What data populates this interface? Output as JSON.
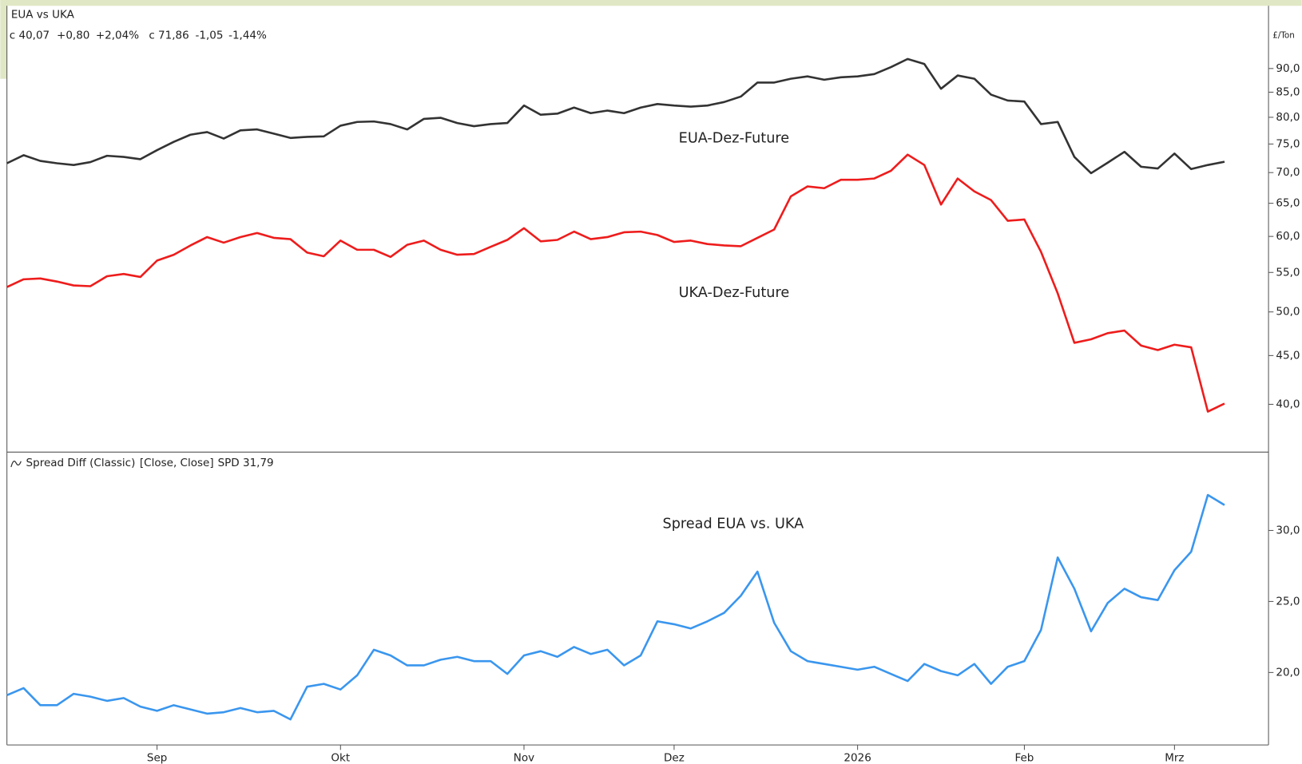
{
  "chart_data": [
    {
      "type": "line",
      "title": "EUA vs UKA",
      "unit": "£/Ton",
      "quotes": [
        {
          "text": "c 40,07",
          "color": "#e8141b"
        },
        {
          "text": "+0,80",
          "color": "#1a9a1a"
        },
        {
          "text": "+2,04%",
          "color": "#1a9a1a"
        },
        {
          "text": "c 71,86",
          "color": "#333333"
        },
        {
          "text": "-1,05",
          "color": "#e8141b"
        },
        {
          "text": "-1,44%",
          "color": "#e8141b"
        }
      ],
      "log": true,
      "ylim": [
        36,
        100
      ],
      "yticks": [
        {
          "value": 40,
          "label": "40,0"
        },
        {
          "value": 45,
          "label": "45,0"
        },
        {
          "value": 50,
          "label": "50,0"
        },
        {
          "value": 55,
          "label": "55,0"
        },
        {
          "value": 60,
          "label": "60,0"
        },
        {
          "value": 65,
          "label": "65,0"
        },
        {
          "value": 70,
          "label": "70,0"
        },
        {
          "value": 75,
          "label": "75,0"
        },
        {
          "value": 80,
          "label": "80,0"
        },
        {
          "value": 85,
          "label": "85,0"
        },
        {
          "value": 90,
          "label": "90,0"
        }
      ],
      "series": [
        {
          "name": "EUA-Dez-Future",
          "color": "#333333",
          "values": [
            71.6,
            73.0,
            72.0,
            71.6,
            71.3,
            71.8,
            72.9,
            72.7,
            72.3,
            73.9,
            75.4,
            76.7,
            77.2,
            76.0,
            77.5,
            77.7,
            76.9,
            76.1,
            76.3,
            76.4,
            78.4,
            79.1,
            79.2,
            78.7,
            77.7,
            79.7,
            79.9,
            78.9,
            78.3,
            78.7,
            78.9,
            82.3,
            80.5,
            80.7,
            81.9,
            80.8,
            81.3,
            80.8,
            81.9,
            82.6,
            82.3,
            82.1,
            82.3,
            83.0,
            84.1,
            87.0,
            87.0,
            87.8,
            88.3,
            87.6,
            88.1,
            88.3,
            88.8,
            90.3,
            92.1,
            91.0,
            85.7,
            88.5,
            87.8,
            84.5,
            83.3,
            83.1,
            78.7,
            79.1,
            72.7,
            69.9,
            71.7,
            73.6,
            71.0,
            70.7,
            73.3,
            70.6,
            71.3,
            71.86
          ]
        },
        {
          "name": "UKA-Dez-Future",
          "color": "#ee1c1c",
          "values": [
            53.1,
            54.1,
            54.2,
            53.8,
            53.3,
            53.2,
            54.5,
            54.8,
            54.4,
            56.6,
            57.4,
            58.7,
            59.9,
            59.1,
            59.9,
            60.5,
            59.8,
            59.6,
            57.7,
            57.2,
            59.4,
            58.1,
            58.1,
            57.1,
            58.8,
            59.4,
            58.1,
            57.4,
            57.5,
            58.5,
            59.5,
            61.2,
            59.3,
            59.5,
            60.7,
            59.6,
            59.9,
            60.6,
            60.7,
            60.2,
            59.2,
            59.4,
            58.9,
            58.7,
            58.6,
            59.8,
            61.0,
            66.1,
            67.7,
            67.4,
            68.8,
            68.8,
            69.0,
            70.3,
            73.1,
            71.3,
            64.8,
            69.0,
            66.9,
            65.5,
            62.3,
            62.5,
            57.8,
            52.3,
            46.4,
            46.8,
            47.5,
            47.8,
            46.1,
            45.6,
            46.2,
            45.9,
            39.3,
            40.07
          ]
        }
      ]
    },
    {
      "type": "line",
      "title": "Spread Diff (Classic)",
      "inputs": "[Close, Close]",
      "quote": {
        "text": "SPD 31,79",
        "color": "#3a96ee"
      },
      "categories": [
        null,
        null,
        null,
        null,
        null,
        null,
        null,
        null,
        null,
        "Sep",
        null,
        null,
        null,
        null,
        null,
        null,
        null,
        null,
        null,
        null,
        "Okt",
        null,
        null,
        null,
        null,
        null,
        null,
        null,
        null,
        null,
        null,
        "Nov",
        null,
        null,
        null,
        null,
        null,
        null,
        null,
        null,
        "Dez",
        null,
        null,
        null,
        null,
        null,
        null,
        null,
        null,
        null,
        null,
        "2026",
        null,
        null,
        null,
        null,
        null,
        null,
        null,
        null,
        null,
        "Feb",
        null,
        null,
        null,
        null,
        null,
        null,
        null,
        null,
        "Mrz",
        null,
        null,
        null
      ],
      "ylim": [
        14.9,
        35.4
      ],
      "yticks": [
        {
          "value": 20,
          "label": "20,0"
        },
        {
          "value": 25,
          "label": "25,0"
        },
        {
          "value": 30,
          "label": "30,0"
        }
      ],
      "series": [
        {
          "name": "Spread EUA vs. UKA",
          "color": "#3a96ee",
          "values": [
            18.4,
            18.9,
            17.7,
            17.7,
            18.5,
            18.3,
            18.0,
            18.2,
            17.6,
            17.3,
            17.7,
            17.4,
            17.1,
            17.2,
            17.5,
            17.2,
            17.3,
            16.7,
            19.0,
            19.2,
            18.8,
            19.8,
            21.6,
            21.2,
            20.5,
            20.5,
            20.9,
            21.1,
            20.8,
            20.8,
            19.9,
            21.2,
            21.5,
            21.1,
            21.8,
            21.3,
            21.6,
            20.5,
            21.2,
            23.6,
            23.4,
            23.1,
            23.6,
            24.2,
            25.4,
            27.1,
            23.5,
            21.5,
            20.8,
            20.6,
            20.4,
            20.2,
            20.4,
            19.9,
            19.4,
            20.6,
            20.1,
            19.8,
            20.6,
            19.2,
            20.4,
            20.8,
            23.0,
            28.1,
            25.9,
            22.9,
            24.9,
            25.9,
            25.3,
            25.1,
            27.2,
            28.5,
            32.5,
            31.79
          ]
        }
      ]
    }
  ]
}
